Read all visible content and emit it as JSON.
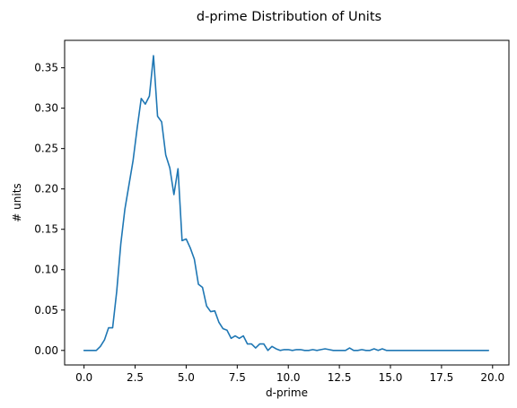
{
  "chart_data": {
    "type": "line",
    "title": "d-prime Distribution of Units",
    "xlabel": "d-prime",
    "ylabel": "# units",
    "xlim": [
      -0.95,
      20.8
    ],
    "ylim": [
      -0.018,
      0.384
    ],
    "xticks": [
      0.0,
      2.5,
      5.0,
      7.5,
      10.0,
      12.5,
      15.0,
      17.5,
      20.0
    ],
    "xtick_labels": [
      "0.0",
      "2.5",
      "5.0",
      "7.5",
      "10.0",
      "12.5",
      "15.0",
      "17.5",
      "20.0"
    ],
    "yticks": [
      0.0,
      0.05,
      0.1,
      0.15,
      0.2,
      0.25,
      0.3,
      0.35
    ],
    "ytick_labels": [
      "0.00",
      "0.05",
      "0.10",
      "0.15",
      "0.20",
      "0.25",
      "0.30",
      "0.35"
    ],
    "grid": false,
    "series": [
      {
        "color": "#1f77b4",
        "x": [
          0.0,
          0.2,
          0.4,
          0.6,
          0.8,
          1.0,
          1.2,
          1.4,
          1.6,
          1.8,
          2.0,
          2.2,
          2.4,
          2.6,
          2.8,
          3.0,
          3.2,
          3.4,
          3.6,
          3.8,
          4.0,
          4.2,
          4.4,
          4.6,
          4.8,
          5.0,
          5.2,
          5.4,
          5.6,
          5.8,
          6.0,
          6.2,
          6.4,
          6.6,
          6.8,
          7.0,
          7.2,
          7.4,
          7.6,
          7.8,
          8.0,
          8.2,
          8.4,
          8.6,
          8.8,
          9.0,
          9.2,
          9.4,
          9.6,
          9.8,
          10.0,
          10.2,
          10.4,
          10.6,
          10.8,
          11.0,
          11.2,
          11.4,
          11.6,
          11.8,
          12.0,
          12.2,
          12.4,
          12.6,
          12.8,
          13.0,
          13.2,
          13.4,
          13.6,
          13.8,
          14.0,
          14.2,
          14.4,
          14.6,
          14.8,
          15.0,
          15.2,
          15.4,
          15.6,
          15.8,
          16.0,
          16.2,
          16.4,
          16.6,
          16.8,
          17.0,
          17.2,
          17.4,
          17.6,
          17.8,
          18.0,
          18.2,
          18.4,
          18.6,
          18.8,
          19.0,
          19.2,
          19.4,
          19.6,
          19.8
        ],
        "y": [
          0.0,
          0.0,
          0.0,
          0.0,
          0.005,
          0.013,
          0.028,
          0.028,
          0.073,
          0.132,
          0.175,
          0.205,
          0.235,
          0.275,
          0.312,
          0.305,
          0.315,
          0.365,
          0.29,
          0.283,
          0.242,
          0.226,
          0.193,
          0.225,
          0.136,
          0.138,
          0.127,
          0.113,
          0.082,
          0.078,
          0.055,
          0.048,
          0.049,
          0.035,
          0.027,
          0.025,
          0.015,
          0.018,
          0.015,
          0.018,
          0.008,
          0.008,
          0.003,
          0.008,
          0.008,
          0.0,
          0.005,
          0.002,
          0.0,
          0.001,
          0.001,
          0.0,
          0.001,
          0.001,
          0.0,
          0.0,
          0.001,
          0.0,
          0.001,
          0.002,
          0.001,
          0.0,
          0.0,
          0.0,
          0.0,
          0.003,
          0.0,
          0.0,
          0.001,
          0.0,
          0.0,
          0.002,
          0.0,
          0.002,
          0.0,
          0.0,
          0.0,
          0.0,
          0.0,
          0.0,
          0.0,
          0.0,
          0.0,
          0.0,
          0.0,
          0.0,
          0.0,
          0.0,
          0.0,
          0.0,
          0.0,
          0.0,
          0.0,
          0.0,
          0.0,
          0.0,
          0.0,
          0.0,
          0.0,
          0.0
        ]
      }
    ]
  }
}
